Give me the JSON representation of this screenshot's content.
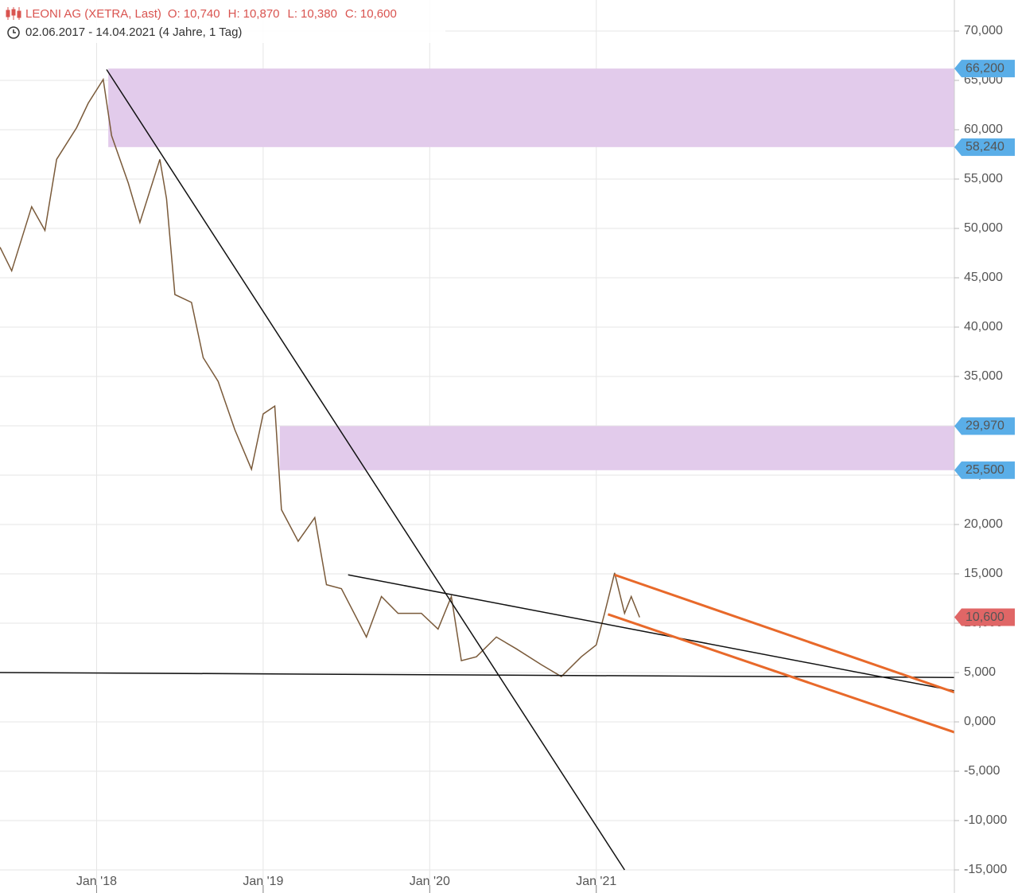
{
  "chart_data": {
    "type": "line",
    "title": "LEONI AG (XETRA, Last)",
    "stats": [
      {
        "key": "O:",
        "value": 10740,
        "label": "10,740"
      },
      {
        "key": "H:",
        "value": 10870,
        "label": "10,870"
      },
      {
        "key": "L:",
        "value": 10380,
        "label": "10,380"
      },
      {
        "key": "C:",
        "value": 10600,
        "label": "10,600"
      }
    ],
    "subtitle": "02.06.2017 - 14.04.2021  (4 Jahre, 1 Tag)",
    "x": [
      2017.42,
      2017.49,
      2017.61,
      2017.69,
      2017.76,
      2017.88,
      2017.95,
      2018.04,
      2018.09,
      2018.19,
      2018.26,
      2018.38,
      2018.42,
      2018.47,
      2018.57,
      2018.64,
      2018.73,
      2018.83,
      2018.93,
      2019.0,
      2019.07,
      2019.11,
      2019.21,
      2019.31,
      2019.38,
      2019.47,
      2019.62,
      2019.71,
      2019.81,
      2019.95,
      2020.05,
      2020.13,
      2020.19,
      2020.28,
      2020.4,
      2020.52,
      2020.67,
      2020.79,
      2020.91,
      2021.0,
      2021.05,
      2021.11,
      2021.17,
      2021.21,
      2021.26
    ],
    "values": [
      48100,
      45700,
      52200,
      49800,
      57000,
      60200,
      62700,
      65100,
      59400,
      54600,
      50600,
      57000,
      53000,
      43300,
      42500,
      36900,
      34500,
      29600,
      25600,
      31200,
      32000,
      21500,
      18300,
      20700,
      13900,
      13500,
      8600,
      12700,
      11000,
      11000,
      9400,
      12700,
      6200,
      6600,
      8600,
      7400,
      5800,
      4600,
      6600,
      7800,
      11000,
      15100,
      11000,
      12700,
      10600
    ],
    "color": "#7a5a3a",
    "xlim": [
      2017.42,
      2023.15
    ],
    "xticks": [
      {
        "value": 2018,
        "label": "Jan '18"
      },
      {
        "value": 2019,
        "label": "Jan '19"
      },
      {
        "value": 2020,
        "label": "Jan '20"
      },
      {
        "value": 2021,
        "label": "Jan '21"
      }
    ],
    "ylim": [
      -15000,
      70000
    ],
    "yticks": [
      {
        "value": 70000,
        "label": "70,000"
      },
      {
        "value": 65000,
        "label": "65,000"
      },
      {
        "value": 60000,
        "label": "60,000"
      },
      {
        "value": 55000,
        "label": "55,000"
      },
      {
        "value": 50000,
        "label": "50,000"
      },
      {
        "value": 45000,
        "label": "45,000"
      },
      {
        "value": 40000,
        "label": "40,000"
      },
      {
        "value": 35000,
        "label": "35,000"
      },
      {
        "value": 30000,
        "label": "30,000"
      },
      {
        "value": 25000,
        "label": "25,000"
      },
      {
        "value": 20000,
        "label": "20,000"
      },
      {
        "value": 15000,
        "label": "15,000"
      },
      {
        "value": 10000,
        "label": "10,000"
      },
      {
        "value": 5000,
        "label": "5,000"
      },
      {
        "value": 0,
        "label": "0,000"
      },
      {
        "value": -5000,
        "label": "-5,000"
      },
      {
        "value": -10000,
        "label": "-10,000"
      },
      {
        "value": -15000,
        "label": "-15,000"
      }
    ],
    "grid": true,
    "zones": [
      {
        "start": 2018.07,
        "low": {
          "value": 58240,
          "label": "58,240"
        },
        "high": {
          "value": 66200,
          "label": "66,200"
        },
        "color": "#e2cbeb"
      },
      {
        "start": 2019.1,
        "low": {
          "value": 25500,
          "label": "25,500"
        },
        "high": {
          "value": 29970,
          "label": "29,970"
        },
        "color": "#e2cbeb"
      }
    ],
    "zone_label_color": "#5aaee8",
    "trendlines": [
      {
        "x": [
          2018.06,
          2021.17
        ],
        "y": [
          66100,
          -15000
        ],
        "color": "#111111"
      },
      {
        "x": [
          2019.51,
          2023.15
        ],
        "y": [
          14900,
          3150
        ],
        "color": "#111111"
      },
      {
        "x": [
          2017.42,
          2023.15
        ],
        "y": [
          5000,
          4500
        ],
        "color": "#111111"
      },
      {
        "x": [
          2021.11,
          2023.15
        ],
        "y": [
          14900,
          3000
        ],
        "color": "#e8692a"
      },
      {
        "x": [
          2021.07,
          2023.15
        ],
        "y": [
          10900,
          -1050
        ],
        "color": "#e8692a"
      }
    ],
    "last": {
      "value": 10600,
      "label": "10,600",
      "color": "#e06666"
    }
  }
}
